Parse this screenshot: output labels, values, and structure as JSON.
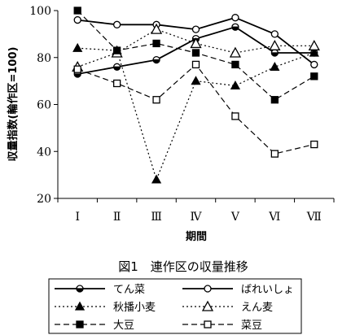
{
  "chart_data": {
    "type": "line",
    "title": "図1　連作区の収量推移",
    "xlabel": "期間",
    "ylabel": "収量指数(輪作区=100)",
    "categories": [
      "Ⅰ",
      "Ⅱ",
      "Ⅲ",
      "Ⅳ",
      "Ⅴ",
      "Ⅵ",
      "Ⅶ"
    ],
    "ylim": [
      20,
      100
    ],
    "yticks": [
      20,
      40,
      60,
      80,
      100
    ],
    "grid": false,
    "legend_position": "bottom",
    "series": [
      {
        "name": "てん菜",
        "values": [
          73,
          76,
          79,
          88,
          93,
          82,
          82
        ],
        "line": "solid",
        "marker": "circle-half",
        "color": "#000000"
      },
      {
        "name": "ばれいしょ",
        "values": [
          96,
          94,
          94,
          92,
          97,
          90,
          77
        ],
        "line": "solid",
        "marker": "circle-open",
        "color": "#000000"
      },
      {
        "name": "秋播小麦",
        "values": [
          84,
          83,
          28,
          70,
          68,
          76,
          82
        ],
        "line": "dotted",
        "marker": "triangle-filled",
        "color": "#000000"
      },
      {
        "name": "えん麦",
        "values": [
          76,
          82,
          92,
          86,
          82,
          85,
          85
        ],
        "line": "dotted",
        "marker": "triangle-open",
        "color": "#000000"
      },
      {
        "name": "大豆",
        "values": [
          100,
          83,
          86,
          82,
          77,
          62,
          72
        ],
        "line": "dashed",
        "marker": "square-filled",
        "color": "#000000"
      },
      {
        "name": "菜豆",
        "values": [
          75,
          69,
          62,
          77,
          55,
          39,
          43
        ],
        "line": "dashed",
        "marker": "square-open",
        "color": "#000000"
      }
    ]
  }
}
